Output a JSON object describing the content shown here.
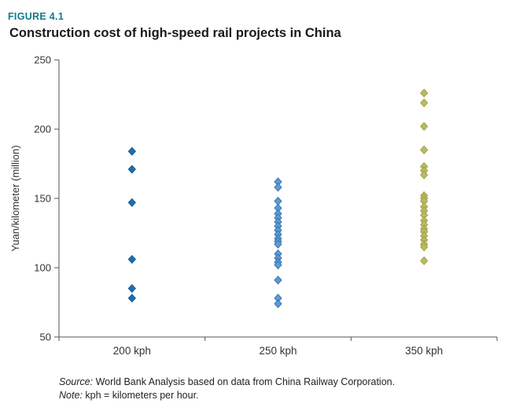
{
  "figure": {
    "label": "FIGURE 4.1",
    "title": "Construction cost of high-speed rail projects in China",
    "label_color": "#0e7c8b"
  },
  "chart_data": {
    "type": "scatter",
    "title": "Construction cost of high-speed rail projects in China",
    "xlabel": "",
    "ylabel": "Yuan/kilometer (million)",
    "ylim": [
      50,
      250
    ],
    "yticks": [
      50,
      100,
      150,
      200,
      250
    ],
    "grid": false,
    "legend": "none",
    "marker": "diamond",
    "axis_color": "#555555",
    "categories": [
      "200 kph",
      "250 kph",
      "350 kph"
    ],
    "series": [
      {
        "name": "200 kph",
        "color": "#1e6db3",
        "stroke": "#15568f",
        "values": [
          184,
          171,
          147,
          106,
          85,
          78
        ]
      },
      {
        "name": "250 kph",
        "color": "#5b9bd5",
        "stroke": "#2e6da4",
        "values": [
          162,
          158,
          148,
          143,
          139,
          136,
          133,
          130,
          127,
          124,
          121,
          119,
          117,
          110,
          107,
          104,
          102,
          91,
          78,
          74
        ]
      },
      {
        "name": "350 kph",
        "color": "#b9ba62",
        "stroke": "#9a9c45",
        "values": [
          226,
          219,
          202,
          185,
          173,
          170,
          167,
          152,
          150,
          148,
          144,
          141,
          138,
          134,
          131,
          128,
          126,
          123,
          120,
          117,
          115,
          105
        ]
      }
    ]
  },
  "footer": {
    "source_label": "Source:",
    "source_text": " World Bank Analysis based on data from China Railway Corporation.",
    "note_label": "Note:",
    "note_text": " kph = kilometers per hour."
  }
}
